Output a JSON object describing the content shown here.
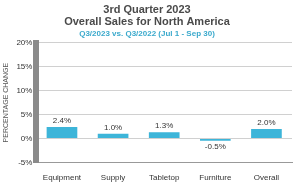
{
  "chart_data": {
    "type": "bar",
    "title": [
      "3rd Quarter 2023",
      "Overall Sales for North America"
    ],
    "subtitle": "Q3/2023 vs. Q3/2022 (Jul 1 - Sep 30)",
    "ylabel": "PERCENTAGE CHANGE",
    "categories": [
      "Equipment",
      "Supply",
      "Tabletop",
      "Furniture",
      "Overall"
    ],
    "values": [
      2.4,
      1.0,
      1.3,
      -0.5,
      2.0
    ],
    "value_labels": [
      "2.4%",
      "1.0%",
      "1.3%",
      "-0.5%",
      "2.0%"
    ],
    "color": "#3db5d9",
    "ylim": [
      -5,
      20
    ],
    "yticks": [
      {
        "value": -5,
        "label": "-5%"
      },
      {
        "value": 0,
        "label": "0%"
      },
      {
        "value": 5,
        "label": "5%"
      },
      {
        "value": 10,
        "label": "10%"
      },
      {
        "value": 15,
        "label": "15%"
      },
      {
        "value": 20,
        "label": "20%"
      }
    ],
    "grid": true,
    "data_labels": true
  }
}
